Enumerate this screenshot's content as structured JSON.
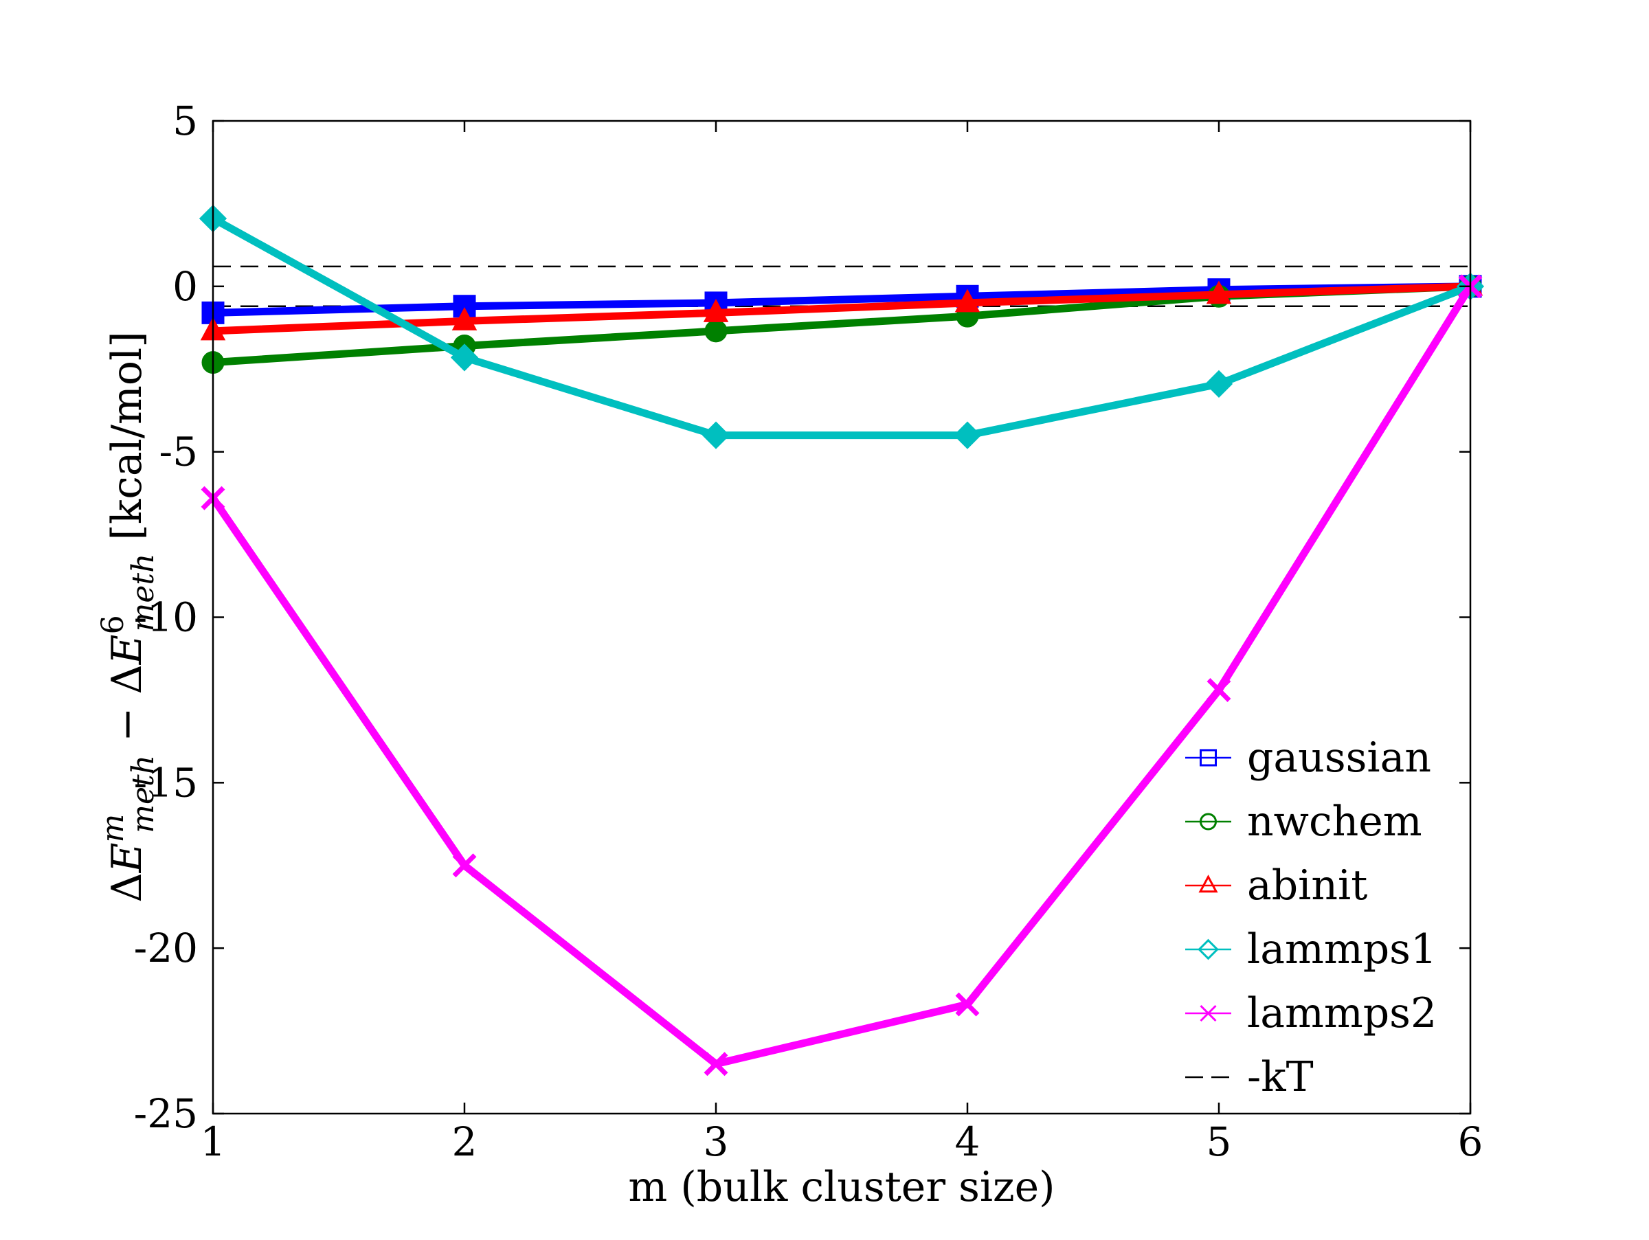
{
  "chart_data": {
    "type": "line",
    "title": "",
    "xlabel": "m (bulk cluster size)",
    "ylabel": "ΔE^m_meth − ΔE^6_meth [kcal/mol]",
    "ylabel_parts": {
      "delta1": "Δ",
      "e1": "E",
      "sup1": "m",
      "sub1": "meth",
      "minus": " − ",
      "delta2": "Δ",
      "e2": "E",
      "sup2": "6",
      "sub2": "meth",
      "units": " [kcal/mol]"
    },
    "xlim": [
      1,
      6
    ],
    "ylim": [
      -25,
      5
    ],
    "x": [
      1,
      2,
      3,
      4,
      5,
      6
    ],
    "xticks": [
      1,
      2,
      3,
      4,
      5,
      6
    ],
    "yticks": [
      5,
      0,
      -5,
      -10,
      -15,
      -20,
      -25
    ],
    "xtick_labels": [
      "1",
      "2",
      "3",
      "4",
      "5",
      "6"
    ],
    "ytick_labels": [
      "5",
      "0",
      "-5",
      "-10",
      "-15",
      "-20",
      "-25"
    ],
    "grid": false,
    "legend_position": "lower-right",
    "series": [
      {
        "name": "gaussian",
        "color": "#0000ff",
        "marker": "square",
        "values": [
          -0.8,
          -0.6,
          -0.5,
          -0.3,
          -0.1,
          0
        ]
      },
      {
        "name": "nwchem",
        "color": "#008000",
        "marker": "circle",
        "values": [
          -2.3,
          -1.8,
          -1.35,
          -0.9,
          -0.3,
          0
        ]
      },
      {
        "name": "abinit",
        "color": "#ff0000",
        "marker": "triangle",
        "values": [
          -1.35,
          -1.05,
          -0.8,
          -0.5,
          -0.25,
          0
        ]
      },
      {
        "name": "lammps1",
        "color": "#00bfbf",
        "marker": "diamond",
        "values": [
          2.05,
          -2.15,
          -4.5,
          -4.5,
          -2.95,
          0
        ]
      },
      {
        "name": "lammps2",
        "color": "#ff00ff",
        "marker": "x",
        "values": [
          -6.4,
          -17.5,
          -23.5,
          -21.7,
          -12.2,
          0
        ]
      }
    ],
    "reference_lines": {
      "name": "-kT",
      "color": "#000000",
      "style": "dashed",
      "values": [
        0.6,
        -0.6
      ]
    }
  }
}
